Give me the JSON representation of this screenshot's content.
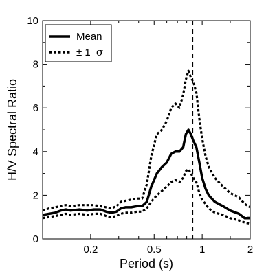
{
  "chart_data": {
    "type": "line",
    "xlabel": "Period (s)",
    "ylabel": "H/V Spectral Ratio",
    "xscale": "log",
    "xlim": [
      0.1,
      2
    ],
    "ylim": [
      0,
      10
    ],
    "x_ticks": [
      0.2,
      0.5,
      1,
      2
    ],
    "x_tick_labels": [
      "0.2",
      "0.5",
      "1",
      "2"
    ],
    "y_ticks": [
      0,
      2,
      4,
      6,
      8,
      10
    ],
    "y_tick_labels": [
      "0",
      "2",
      "4",
      "6",
      "8",
      "10"
    ],
    "legend_position": "top-left",
    "legend": {
      "mean_label": "Mean",
      "sigma_prefix": "± 1",
      "sigma_symbol": "σ"
    },
    "vline": {
      "x": 0.87,
      "style": "dashed"
    },
    "series": [
      {
        "key": "mean",
        "style": "solid",
        "x": [
          0.1,
          0.11,
          0.12,
          0.13,
          0.14,
          0.15,
          0.17,
          0.19,
          0.21,
          0.23,
          0.25,
          0.27,
          0.29,
          0.31,
          0.33,
          0.36,
          0.39,
          0.42,
          0.45,
          0.48,
          0.52,
          0.56,
          0.6,
          0.64,
          0.68,
          0.72,
          0.76,
          0.79,
          0.82,
          0.85,
          0.88,
          0.92,
          0.96,
          1.0,
          1.05,
          1.1,
          1.2,
          1.35,
          1.5,
          1.7,
          1.85,
          2.0
        ],
        "y": [
          1.1,
          1.15,
          1.2,
          1.3,
          1.35,
          1.3,
          1.35,
          1.3,
          1.35,
          1.35,
          1.25,
          1.2,
          1.25,
          1.4,
          1.45,
          1.45,
          1.5,
          1.5,
          1.7,
          2.4,
          3.0,
          3.3,
          3.5,
          3.9,
          4.0,
          4.0,
          4.2,
          4.8,
          5.0,
          4.8,
          4.5,
          4.2,
          3.5,
          2.8,
          2.3,
          2.0,
          1.7,
          1.5,
          1.3,
          1.15,
          0.95,
          0.95
        ]
      },
      {
        "key": "plus_sigma",
        "style": "dotted",
        "x": [
          0.1,
          0.11,
          0.12,
          0.13,
          0.14,
          0.15,
          0.17,
          0.19,
          0.21,
          0.23,
          0.25,
          0.27,
          0.29,
          0.31,
          0.33,
          0.36,
          0.39,
          0.42,
          0.45,
          0.48,
          0.52,
          0.56,
          0.6,
          0.64,
          0.68,
          0.72,
          0.76,
          0.79,
          0.82,
          0.85,
          0.88,
          0.92,
          0.96,
          1.0,
          1.05,
          1.1,
          1.2,
          1.35,
          1.5,
          1.7,
          1.85,
          2.0
        ],
        "y": [
          1.3,
          1.4,
          1.45,
          1.5,
          1.55,
          1.5,
          1.55,
          1.55,
          1.55,
          1.5,
          1.45,
          1.4,
          1.5,
          1.7,
          1.75,
          1.8,
          1.85,
          1.85,
          2.5,
          3.8,
          4.8,
          5.0,
          5.4,
          6.0,
          6.2,
          6.0,
          6.6,
          7.3,
          7.7,
          7.4,
          7.2,
          6.7,
          5.5,
          4.6,
          3.8,
          3.3,
          2.8,
          2.4,
          2.1,
          1.9,
          1.6,
          1.45
        ]
      },
      {
        "key": "minus_sigma",
        "style": "dotted",
        "x": [
          0.1,
          0.11,
          0.12,
          0.13,
          0.14,
          0.15,
          0.17,
          0.19,
          0.21,
          0.23,
          0.25,
          0.27,
          0.29,
          0.31,
          0.33,
          0.36,
          0.39,
          0.42,
          0.45,
          0.48,
          0.52,
          0.56,
          0.6,
          0.64,
          0.68,
          0.72,
          0.76,
          0.79,
          0.82,
          0.85,
          0.88,
          0.92,
          0.96,
          1.0,
          1.05,
          1.1,
          1.2,
          1.35,
          1.5,
          1.7,
          1.85,
          2.0
        ],
        "y": [
          0.95,
          1.0,
          1.05,
          1.1,
          1.15,
          1.1,
          1.15,
          1.1,
          1.15,
          1.15,
          1.05,
          1.0,
          1.05,
          1.15,
          1.2,
          1.2,
          1.25,
          1.25,
          1.4,
          1.7,
          2.0,
          2.2,
          2.4,
          2.6,
          2.7,
          2.6,
          2.8,
          3.1,
          3.2,
          3.0,
          2.8,
          2.6,
          2.1,
          1.8,
          1.6,
          1.4,
          1.2,
          1.1,
          0.95,
          0.85,
          0.75,
          0.7
        ]
      }
    ]
  }
}
